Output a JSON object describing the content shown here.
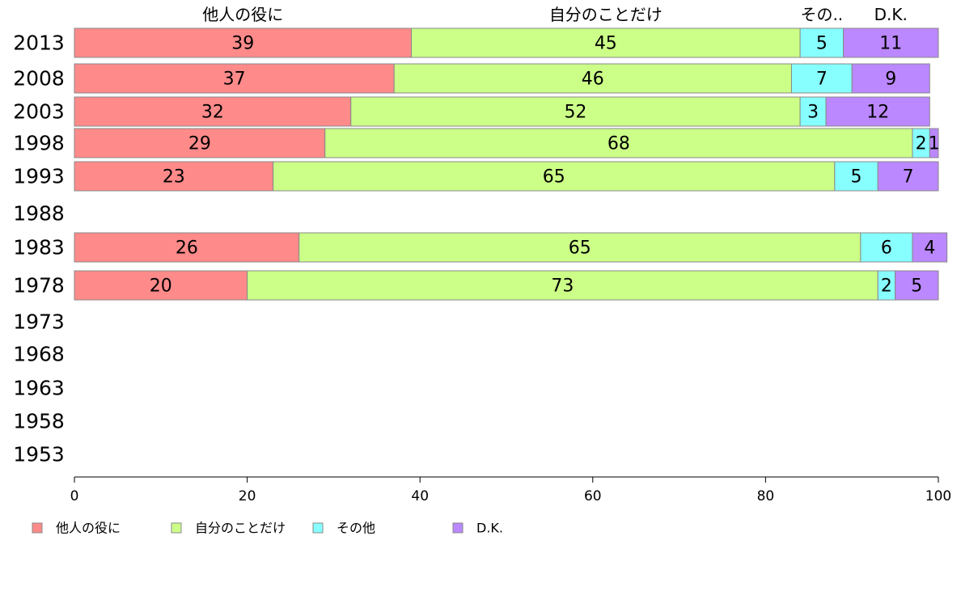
{
  "chart_data": {
    "type": "bar",
    "orientation": "horizontal",
    "stacked": true,
    "categories": [
      "2013",
      "2008",
      "2003",
      "1998",
      "1993",
      "1988",
      "1983",
      "1978",
      "1973",
      "1968",
      "1963",
      "1958",
      "1953"
    ],
    "series": [
      {
        "name": "他人の役に",
        "color": "#ff8a8a",
        "values": [
          39,
          37,
          32,
          29,
          23,
          null,
          26,
          20,
          null,
          null,
          null,
          null,
          null
        ]
      },
      {
        "name": "自分のことだけ",
        "color": "#ccff88",
        "values": [
          45,
          46,
          52,
          68,
          65,
          null,
          65,
          73,
          null,
          null,
          null,
          null,
          null
        ]
      },
      {
        "name": "その他",
        "color": "#88ffff",
        "values": [
          5,
          7,
          3,
          2,
          5,
          null,
          6,
          2,
          null,
          null,
          null,
          null,
          null
        ]
      },
      {
        "name": "D.K.",
        "color": "#bb88ff",
        "values": [
          11,
          9,
          12,
          1,
          7,
          null,
          4,
          5,
          null,
          null,
          null,
          null,
          null
        ]
      }
    ],
    "top_labels": [
      "他人の役に",
      "自分のことだけ",
      "その..",
      "D.K."
    ],
    "xlim": [
      0,
      100
    ],
    "xticks": [
      0,
      20,
      40,
      60,
      80,
      100
    ],
    "legend_position": "bottom",
    "grid": false
  }
}
